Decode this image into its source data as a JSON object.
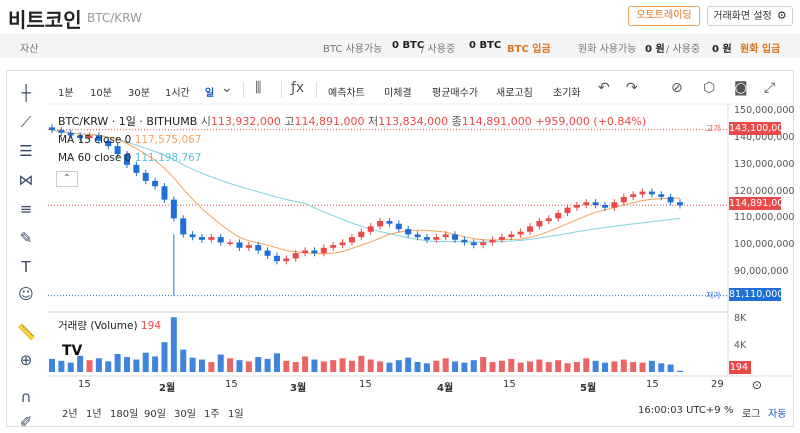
{
  "header": {
    "title": "비트코인",
    "pair": "BTC/KRW",
    "auto_trade_btn": "오토트레이딩",
    "settings_btn": "거래화면 설정"
  },
  "assets": {
    "label": "자산",
    "btc_avail_label": "BTC 사용가능",
    "btc_avail_value": "0 BTC",
    "btc_using_label": "/ 사용중",
    "btc_using_value": "0 BTC",
    "btc_deposit": "BTC 입금",
    "krw_avail_label": "원화 사용가능",
    "krw_avail_value": "0 원",
    "krw_using_label": "/ 사용중",
    "krw_using_value": "0 원",
    "krw_deposit": "원화 입금"
  },
  "toolbar": {
    "intervals": [
      "1분",
      "10분",
      "30분",
      "1시간",
      "일"
    ],
    "active_interval": "일",
    "buttons": [
      "예측차트",
      "미체결",
      "평균매수가",
      "새로고침",
      "초기화"
    ]
  },
  "legend": {
    "symbol": "BTC/KRW · 1일 · BITHUMB",
    "open_label": "시",
    "open": "113,932,000",
    "high_label": "고",
    "high": "114,891,000",
    "low_label": "저",
    "low": "113,834,000",
    "close_label": "종",
    "close": "114,891,000",
    "change": "+959,000 (+0.84%)",
    "ma15_label": "MA 15 close 0",
    "ma15_value": "117,575,067",
    "ma60_label": "MA 60 close 0",
    "ma60_value": "111,198,767",
    "volume_label": "거래량 (Volume)",
    "volume_value": "194"
  },
  "price_axis": {
    "ticks": [
      "150,000,000",
      "140,000,000",
      "130,000,000",
      "120,000,000",
      "110,000,000",
      "100,000,000",
      "90,000,000"
    ],
    "high_tag_label": "고가",
    "high_tag": "143,100,000",
    "current_tag": "114,891,000",
    "low_tag_label": "저가",
    "low_tag": "81,110,000",
    "volume_ticks": [
      "8K",
      "4K"
    ],
    "volume_tag": "194"
  },
  "time_axis": [
    "15",
    "2월",
    "15",
    "3월",
    "15",
    "4월",
    "15",
    "5월",
    "15",
    "29"
  ],
  "bottombar": {
    "ranges": [
      "2년",
      "1년",
      "180일",
      "90일",
      "30일",
      "1주",
      "1일"
    ],
    "clock": "16:00:03 UTC+9",
    "percent": "%",
    "log": "로그",
    "auto": "자동"
  },
  "colors": {
    "up": "#e84a4a",
    "down": "#1f6fd6",
    "ma15": "#f4a259",
    "ma60": "#7fd3e0",
    "accent": "#e0741c"
  },
  "chart_data": {
    "type": "candlestick",
    "x": [
      "Jan 5",
      "Jan 7",
      "Jan 9",
      "Jan 11",
      "Jan 13",
      "Jan 15",
      "Jan 17",
      "Jan 19",
      "Jan 21",
      "Jan 23",
      "Jan 25",
      "Jan 27",
      "Jan 29",
      "Feb 1",
      "Feb 3",
      "Feb 5",
      "Feb 7",
      "Feb 9",
      "Feb 11",
      "Feb 13",
      "Feb 15",
      "Feb 17",
      "Feb 19",
      "Feb 21",
      "Feb 23",
      "Feb 25",
      "Feb 27",
      "Mar 1",
      "Mar 3",
      "Mar 5",
      "Mar 7",
      "Mar 9",
      "Mar 11",
      "Mar 13",
      "Mar 15",
      "Mar 17",
      "Mar 19",
      "Mar 21",
      "Mar 23",
      "Mar 25",
      "Mar 27",
      "Mar 29",
      "Mar 31",
      "Apr 2",
      "Apr 4",
      "Apr 6",
      "Apr 8",
      "Apr 10",
      "Apr 12",
      "Apr 14",
      "Apr 16",
      "Apr 18",
      "Apr 20",
      "Apr 22",
      "Apr 24",
      "Apr 26",
      "Apr 28",
      "Apr 30",
      "May 2",
      "May 4",
      "May 6",
      "May 8",
      "May 10",
      "May 12",
      "May 14",
      "May 16",
      "May 18",
      "May 20"
    ],
    "close": [
      143,
      142,
      141,
      140,
      141,
      139,
      137,
      134,
      130,
      127,
      124,
      122,
      117,
      110,
      104,
      103,
      102,
      103,
      101,
      101,
      99,
      100,
      98,
      96,
      94,
      95,
      97,
      98,
      97,
      99,
      100,
      101,
      103,
      105,
      107,
      109,
      108,
      106,
      104,
      103,
      102,
      103,
      104,
      102,
      101,
      100,
      101,
      102,
      103,
      104,
      105,
      107,
      109,
      110,
      112,
      114,
      115,
      116,
      115,
      114,
      116,
      118,
      119,
      120,
      119,
      118,
      116,
      114.9
    ],
    "volume_k": [
      2.1,
      1.8,
      1.5,
      2.6,
      1.9,
      2.2,
      1.7,
      2.9,
      2.4,
      2.0,
      3.1,
      2.5,
      4.8,
      8.8,
      3.6,
      2.3,
      2.0,
      1.6,
      2.8,
      2.2,
      1.9,
      1.7,
      2.4,
      2.1,
      3.0,
      1.8,
      1.6,
      2.5,
      2.0,
      1.7,
      1.9,
      2.2,
      1.8,
      2.6,
      2.0,
      1.7,
      1.5,
      1.9,
      2.3,
      1.6,
      1.4,
      1.8,
      2.2,
      1.7,
      1.5,
      1.9,
      2.4,
      1.6,
      1.8,
      2.1,
      1.5,
      1.7,
      2.0,
      1.6,
      1.9,
      1.4,
      1.6,
      2.2,
      1.8,
      1.5,
      1.7,
      2.0,
      1.6,
      1.5,
      1.8,
      1.4,
      1.2,
      0.2
    ],
    "ylim": [
      75,
      152
    ],
    "ma15_last": 117.575,
    "ma60_last": 111.199,
    "high": 143.1,
    "low": 81.11,
    "unit": "백만 KRW"
  }
}
